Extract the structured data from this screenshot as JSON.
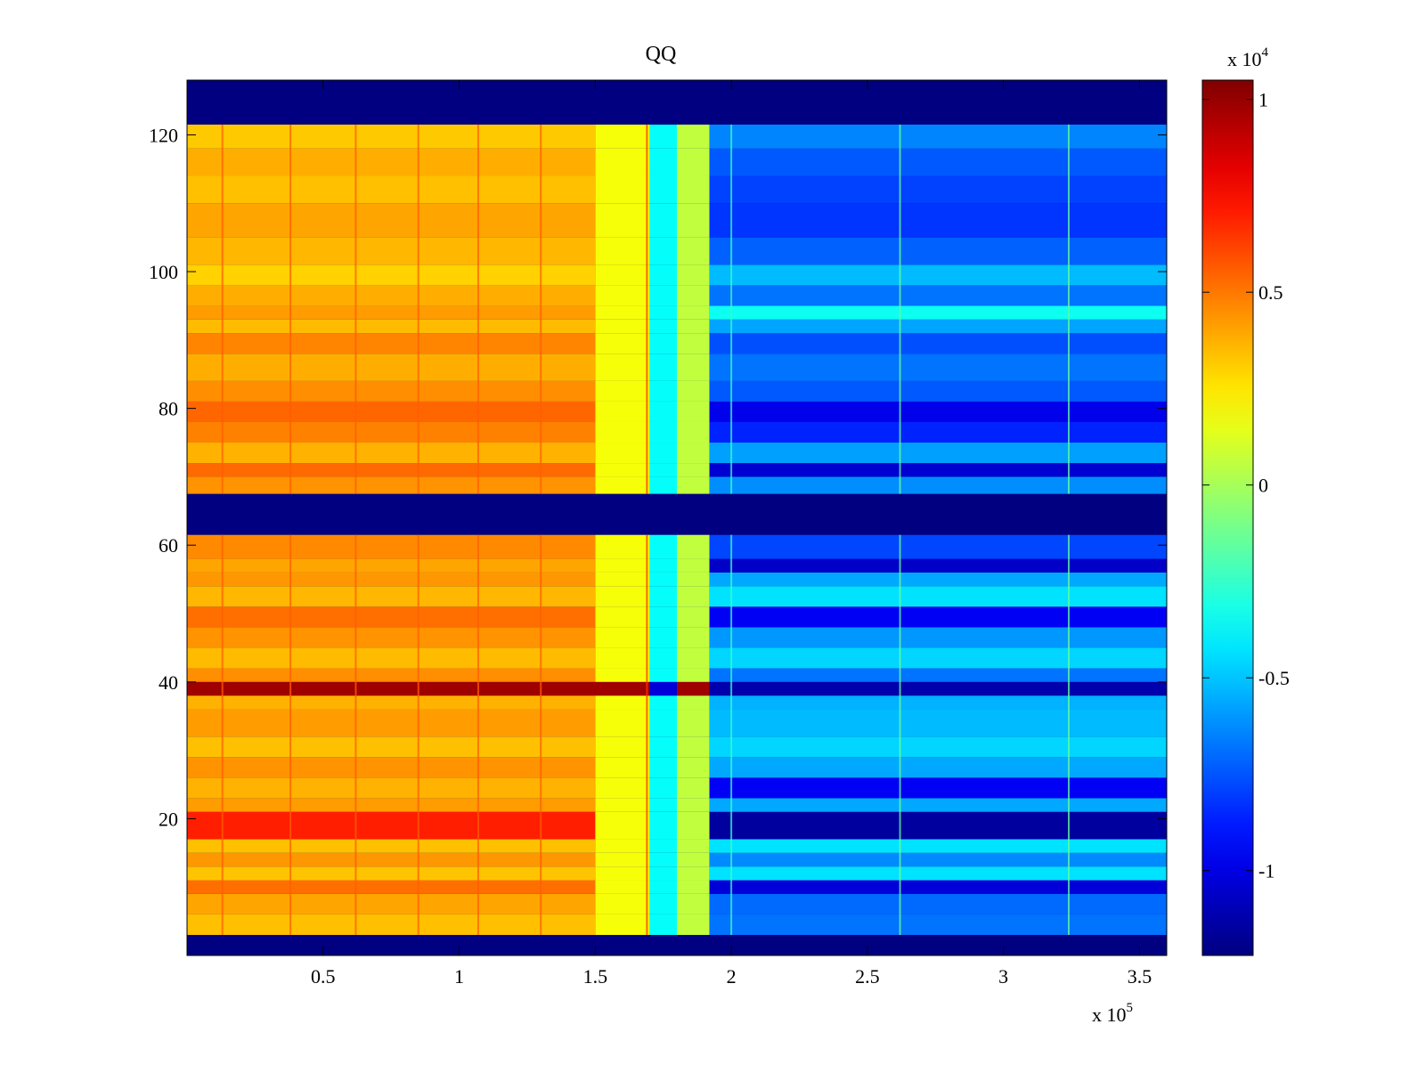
{
  "chart_data": {
    "type": "heatmap",
    "title": "QQ",
    "colormap": "jet",
    "xlabel": "",
    "ylabel": "",
    "x_range": [
      0,
      360000
    ],
    "y_range": [
      0,
      128
    ],
    "x_ticks": [
      {
        "value": 50000,
        "label": "0.5"
      },
      {
        "value": 100000,
        "label": "1"
      },
      {
        "value": 150000,
        "label": "1.5"
      },
      {
        "value": 200000,
        "label": "2"
      },
      {
        "value": 250000,
        "label": "2.5"
      },
      {
        "value": 300000,
        "label": "3"
      },
      {
        "value": 350000,
        "label": "3.5"
      }
    ],
    "x_exponent": {
      "base": "x 10",
      "power": "5"
    },
    "y_ticks": [
      {
        "value": 20,
        "label": "20"
      },
      {
        "value": 40,
        "label": "40"
      },
      {
        "value": 60,
        "label": "60"
      },
      {
        "value": 80,
        "label": "80"
      },
      {
        "value": 100,
        "label": "100"
      },
      {
        "value": 120,
        "label": "120"
      }
    ],
    "colorbar": {
      "range": [
        -12200,
        10500
      ],
      "ticks": [
        {
          "value": -10000,
          "label": "-1"
        },
        {
          "value": -5000,
          "label": "-0.5"
        },
        {
          "value": 0,
          "label": "0"
        },
        {
          "value": 5000,
          "label": "0.5"
        },
        {
          "value": 10000,
          "label": "1"
        }
      ],
      "exponent": {
        "base": "x 10",
        "power": "4"
      }
    },
    "background_value": -12200,
    "masked_rows": [
      [
        0,
        3
      ],
      [
        61.5,
        67.5
      ],
      [
        121.5,
        128
      ]
    ],
    "x_segments": [
      {
        "x0": 0,
        "x1": 150000,
        "value": 3600
      },
      {
        "x0": 150000,
        "x1": 170000,
        "value": 1800
      },
      {
        "x0": 170000,
        "x1": 180000,
        "value": -3600
      },
      {
        "x0": 180000,
        "x1": 192000,
        "value": 600
      },
      {
        "x0": 192000,
        "x1": 360000,
        "value": -6200
      }
    ],
    "column_lines": [
      {
        "x": 13000,
        "value": 5600
      },
      {
        "x": 38000,
        "value": 5600
      },
      {
        "x": 62000,
        "value": 5600
      },
      {
        "x": 85000,
        "value": 5600
      },
      {
        "x": 107000,
        "value": 5600
      },
      {
        "x": 130000,
        "value": 5600
      },
      {
        "x": 169000,
        "value": 6500
      },
      {
        "x": 200000,
        "value": -2500
      },
      {
        "x": 262000,
        "value": -1500
      },
      {
        "x": 324000,
        "value": -1500
      }
    ],
    "row_bands": [
      {
        "y0": 3,
        "y1": 6,
        "left": 3400,
        "right": -6800
      },
      {
        "y0": 6,
        "y1": 9,
        "left": 4000,
        "right": -7000
      },
      {
        "y0": 9,
        "y1": 11,
        "left": 5200,
        "right": -10200
      },
      {
        "y0": 11,
        "y1": 13,
        "left": 3300,
        "right": -4300
      },
      {
        "y0": 13,
        "y1": 15,
        "left": 4300,
        "right": -6300
      },
      {
        "y0": 15,
        "y1": 17,
        "left": 3400,
        "right": -4300
      },
      {
        "y0": 17,
        "y1": 21,
        "left": 7000,
        "right": -11500
      },
      {
        "y0": 21,
        "y1": 23,
        "left": 4200,
        "right": -5600
      },
      {
        "y0": 23,
        "y1": 26,
        "left": 3700,
        "right": -9600
      },
      {
        "y0": 26,
        "y1": 29,
        "left": 4400,
        "right": -5600
      },
      {
        "y0": 29,
        "y1": 32,
        "left": 3400,
        "right": -4600
      },
      {
        "y0": 32,
        "y1": 36,
        "left": 4200,
        "right": -5200
      },
      {
        "y0": 36,
        "y1": 38,
        "left": 3700,
        "right": -5400
      },
      {
        "y0": 38,
        "y1": 40,
        "left": 9800,
        "right": -11200
      },
      {
        "y0": 40,
        "y1": 42,
        "left": 4500,
        "right": -6800
      },
      {
        "y0": 42,
        "y1": 45,
        "left": 3500,
        "right": -4600
      },
      {
        "y0": 45,
        "y1": 48,
        "left": 4400,
        "right": -6000
      },
      {
        "y0": 48,
        "y1": 51,
        "left": 5200,
        "right": -9600
      },
      {
        "y0": 51,
        "y1": 54,
        "left": 3600,
        "right": -4300
      },
      {
        "y0": 54,
        "y1": 56,
        "left": 4300,
        "right": -5600
      },
      {
        "y0": 56,
        "y1": 58,
        "left": 4000,
        "right": -10600
      },
      {
        "y0": 58,
        "y1": 61.5,
        "left": 4600,
        "right": -7800
      },
      {
        "y0": 67.5,
        "y1": 70,
        "left": 4400,
        "right": -6200
      },
      {
        "y0": 70,
        "y1": 72,
        "left": 5300,
        "right": -10400
      },
      {
        "y0": 72,
        "y1": 75,
        "left": 3700,
        "right": -5800
      },
      {
        "y0": 75,
        "y1": 78,
        "left": 4800,
        "right": -8600
      },
      {
        "y0": 78,
        "y1": 81,
        "left": 5400,
        "right": -9800
      },
      {
        "y0": 81,
        "y1": 84,
        "left": 4500,
        "right": -7400
      },
      {
        "y0": 84,
        "y1": 88,
        "left": 3800,
        "right": -6800
      },
      {
        "y0": 88,
        "y1": 91,
        "left": 4700,
        "right": -7600
      },
      {
        "y0": 91,
        "y1": 93,
        "left": 3500,
        "right": -5700
      },
      {
        "y0": 93,
        "y1": 95,
        "left": 4200,
        "right": -3400
      },
      {
        "y0": 95,
        "y1": 98,
        "left": 3800,
        "right": -6800
      },
      {
        "y0": 98,
        "y1": 101,
        "left": 3000,
        "right": -5200
      },
      {
        "y0": 101,
        "y1": 105,
        "left": 3600,
        "right": -7200
      },
      {
        "y0": 105,
        "y1": 110,
        "left": 4000,
        "right": -8200
      },
      {
        "y0": 110,
        "y1": 114,
        "left": 3400,
        "right": -7900
      },
      {
        "y0": 114,
        "y1": 118,
        "left": 3800,
        "right": -7400
      },
      {
        "y0": 118,
        "y1": 121.5,
        "left": 3200,
        "right": -6400
      }
    ]
  }
}
